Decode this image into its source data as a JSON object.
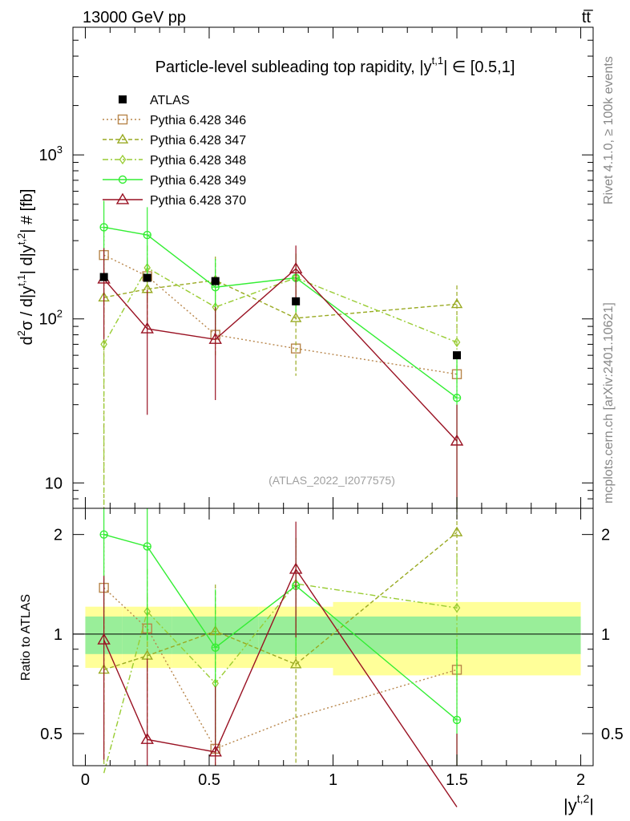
{
  "header": {
    "energy_label": "13000 GeV pp",
    "process_label": "tt̅"
  },
  "side_text": {
    "rivet": "Rivet 4.1.0, ≥ 100k events",
    "source": "mcplots.cern.ch [arXiv:2401.10621]"
  },
  "chart_data": {
    "type": "line",
    "title": "Particle-level subleading top rapidity, |y^{t,1}| ∈ [0.5,1]",
    "title_parts": {
      "pre": "Particle-level subleading top rapidity, |y",
      "sup": "t,1",
      "post": "| ∈ [0.5,1]"
    },
    "watermark": "(ATLAS_2022_I2077575)",
    "ylabel": "d²σ / d|y^{t,1}| d|y^{t,2}| # [fb]",
    "ylabel_ratio": "Ratio to ATLAS",
    "xlabel": "|y^{t,2}|",
    "xlabel_parts": {
      "base": "|y",
      "sup": "t,2",
      "end": "|"
    },
    "xlim": [
      -0.05,
      2.05
    ],
    "ylim": [
      7,
      6000
    ],
    "yscale": "log",
    "ratio_ylim": [
      0.4,
      2.4
    ],
    "ratio_yscale": "log",
    "x_ticks": [
      {
        "v": 0,
        "label": "0"
      },
      {
        "v": 0.5,
        "label": "0.5"
      },
      {
        "v": 1,
        "label": "1"
      },
      {
        "v": 1.5,
        "label": "1.5"
      },
      {
        "v": 2,
        "label": "2"
      }
    ],
    "y_major_ticks": [
      {
        "v": 10,
        "base": "10",
        "exp": ""
      },
      {
        "v": 100,
        "base": "10",
        "exp": "2"
      },
      {
        "v": 1000,
        "base": "10",
        "exp": "3"
      }
    ],
    "ratio_ticks": [
      {
        "v": 0.5,
        "label": "0.5"
      },
      {
        "v": 1,
        "label": "1"
      },
      {
        "v": 2,
        "label": "2"
      }
    ],
    "bins": [
      {
        "lo": 0,
        "hi": 0.15
      },
      {
        "lo": 0.15,
        "hi": 0.35
      },
      {
        "lo": 0.35,
        "hi": 0.7
      },
      {
        "lo": 0.7,
        "hi": 1.0
      },
      {
        "lo": 1.0,
        "hi": 2.0
      }
    ],
    "data": {
      "name": "ATLAS",
      "x": [
        0.075,
        0.25,
        0.525,
        0.85,
        1.5
      ],
      "values": [
        180,
        178,
        170,
        128,
        60
      ],
      "band_stat": [
        0.13,
        0.13,
        0.13,
        0.13,
        0.13
      ],
      "band_total": [
        0.21,
        0.21,
        0.21,
        0.21,
        0.25
      ]
    },
    "series": [
      {
        "name": "Pythia 6.428 346",
        "color": "#b8864b",
        "dash": "2,3",
        "marker": "square",
        "x": [
          0.075,
          0.25,
          0.525,
          0.85,
          1.5
        ],
        "values": [
          245,
          182,
          80,
          66,
          46
        ],
        "err_lo": [
          105,
          130,
          78,
          66,
          33
        ],
        "err_hi": [
          360,
          200,
          94,
          66,
          58
        ],
        "ratio": [
          1.38,
          1.04,
          0.45,
          null,
          0.78
        ]
      },
      {
        "name": "Pythia 6.428 347",
        "color": "#99aa22",
        "dash": "5,3",
        "marker": "triangle",
        "x": [
          0.075,
          0.25,
          0.525,
          0.85,
          1.5
        ],
        "values": [
          135,
          152,
          172,
          101,
          123
        ],
        "err_lo": [
          1,
          90,
          95,
          45,
          88
        ],
        "err_hi": [
          200,
          230,
          240,
          150,
          160
        ],
        "ratio": [
          0.78,
          0.86,
          1.02,
          0.81,
          2.03
        ]
      },
      {
        "name": "Pythia 6.428 348",
        "color": "#99cc33",
        "dash": "7,3,2,3",
        "marker": "diamond",
        "x": [
          0.075,
          0.25,
          0.525,
          0.85,
          1.5
        ],
        "values": [
          70,
          205,
          118,
          178,
          72
        ],
        "err_lo": [
          1,
          120,
          60,
          110,
          40
        ],
        "err_hi": [
          140,
          280,
          175,
          250,
          104
        ],
        "ratio": [
          0.38,
          1.17,
          0.71,
          1.42,
          1.2
        ]
      },
      {
        "name": "Pythia 6.428 349",
        "color": "#33ee33",
        "dash": "",
        "marker": "circle",
        "x": [
          0.075,
          0.25,
          0.525,
          0.85,
          1.5
        ],
        "values": [
          362,
          325,
          156,
          178,
          33
        ],
        "err_lo": [
          200,
          170,
          80,
          110,
          1
        ],
        "err_hi": [
          525,
          480,
          232,
          250,
          58
        ],
        "ratio": [
          2.0,
          1.84,
          0.91,
          1.4,
          0.55
        ]
      },
      {
        "name": "Pythia 6.428 370",
        "color": "#991122",
        "dash": "",
        "marker": "triangle-open",
        "x": [
          0.075,
          0.25,
          0.525,
          0.85,
          1.5
        ],
        "values": [
          175,
          87,
          75,
          202,
          18
        ],
        "err_lo": [
          75,
          26,
          32,
          125,
          6
        ],
        "err_hi": [
          270,
          150,
          118,
          280,
          30
        ],
        "ratio": [
          0.96,
          0.48,
          0.44,
          1.57,
          0.3
        ]
      }
    ]
  }
}
